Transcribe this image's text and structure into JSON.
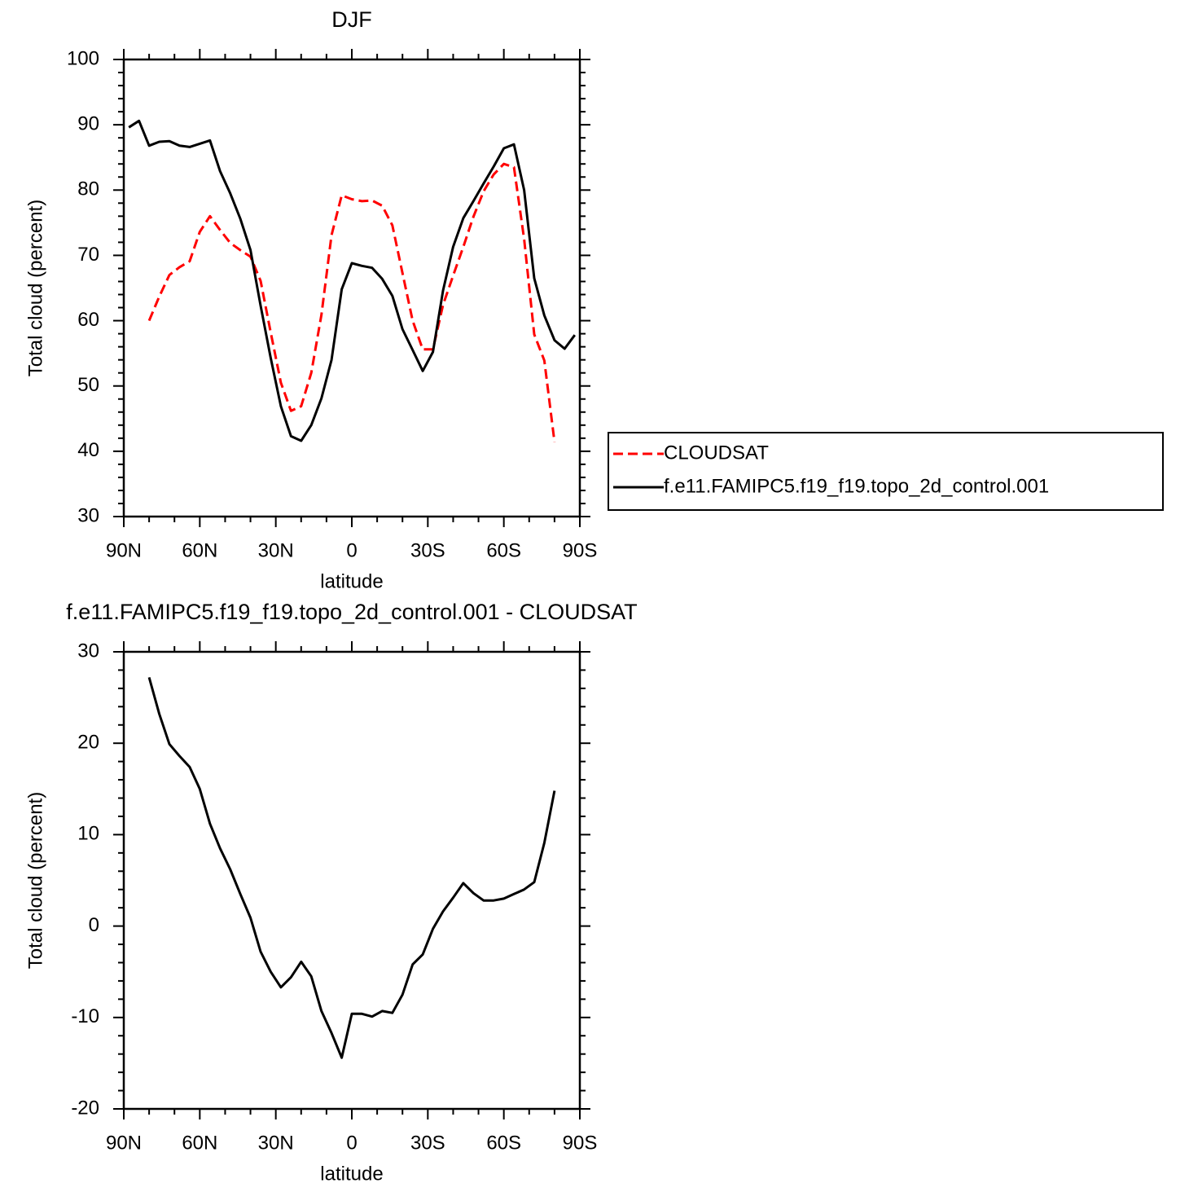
{
  "chart_data": [
    {
      "type": "line",
      "title": "DJF",
      "xlabel": "latitude",
      "ylabel": "Total cloud (percent)",
      "x": [
        88,
        84,
        80,
        76,
        72,
        68,
        64,
        60,
        56,
        52,
        48,
        44,
        40,
        36,
        32,
        28,
        24,
        20,
        16,
        12,
        8,
        4,
        0,
        -4,
        -8,
        -12,
        -16,
        -20,
        -24,
        -28,
        -32,
        -36,
        -40,
        -44,
        -48,
        -52,
        -56,
        -60,
        -64,
        -68,
        -72,
        -76,
        -80,
        -84,
        -88
      ],
      "series": [
        {
          "name": "CLOUDSAT",
          "color": "#ff0000",
          "dashed": true,
          "values": [
            null,
            null,
            60.0,
            63.7,
            67.0,
            68.2,
            69.1,
            73.6,
            76.0,
            73.9,
            71.9,
            70.8,
            69.8,
            66.1,
            58.2,
            50.5,
            46.2,
            46.9,
            52.0,
            60.9,
            73.1,
            79.2,
            78.6,
            78.3,
            78.4,
            77.6,
            74.6,
            67.3,
            60.0,
            55.6,
            55.6,
            62.4,
            66.9,
            71.3,
            75.9,
            79.8,
            82.4,
            84.0,
            83.5,
            72.5,
            57.9,
            53.9,
            41.4,
            null,
            null
          ]
        },
        {
          "name": "f.e11.FAMIPC5.f19_f19.topo_2d_control.001",
          "color": "#000000",
          "dashed": false,
          "values": [
            89.6,
            90.6,
            86.8,
            87.4,
            87.5,
            86.8,
            86.6,
            87.1,
            87.6,
            82.9,
            79.5,
            75.6,
            70.8,
            62.3,
            54.3,
            46.9,
            42.3,
            41.6,
            44.0,
            48.1,
            54.0,
            64.8,
            68.8,
            68.4,
            68.1,
            66.4,
            63.8,
            58.7,
            55.5,
            52.3,
            55.2,
            64.6,
            71.3,
            75.7,
            78.3,
            81.0,
            83.6,
            86.4,
            87.0,
            80.0,
            66.5,
            60.8,
            57.0,
            55.7,
            57.8
          ]
        }
      ],
      "xlim": [
        90,
        -90
      ],
      "xticks": [
        {
          "value": 90,
          "label": "90N"
        },
        {
          "value": 60,
          "label": "60N"
        },
        {
          "value": 30,
          "label": "30N"
        },
        0,
        {
          "value": -30,
          "label": "30S"
        },
        {
          "value": -60,
          "label": "60S"
        },
        {
          "value": -90,
          "label": "90S"
        }
      ],
      "ylim": [
        30,
        100
      ],
      "yticks": [
        30,
        40,
        50,
        60,
        70,
        80,
        90,
        100
      ],
      "legend": "right"
    },
    {
      "type": "line",
      "title": "f.e11.FAMIPC5.f19_f19.topo_2d_control.001 - CLOUDSAT",
      "xlabel": "latitude",
      "ylabel": "Total cloud (percent)",
      "x": [
        80,
        76,
        72,
        68,
        64,
        60,
        56,
        52,
        48,
        44,
        40,
        36,
        32,
        28,
        24,
        20,
        16,
        12,
        8,
        4,
        0,
        -4,
        -8,
        -12,
        -16,
        -20,
        -24,
        -28,
        -32,
        -36,
        -40,
        -44,
        -48,
        -52,
        -56,
        -60,
        -64,
        -68,
        -72,
        -76,
        -80
      ],
      "series": [
        {
          "color": "#000000",
          "dashed": false,
          "values": [
            27.2,
            23.2,
            19.9,
            18.6,
            17.4,
            15.0,
            11.2,
            8.5,
            6.2,
            3.5,
            0.9,
            -2.8,
            -5.0,
            -6.7,
            -5.6,
            -3.9,
            -5.5,
            -9.3,
            -11.7,
            -14.4,
            -9.6,
            -9.6,
            -9.9,
            -9.3,
            -9.5,
            -7.5,
            -4.2,
            -3.1,
            -0.3,
            1.6,
            3.1,
            4.7,
            3.6,
            2.8,
            2.8,
            3.0,
            3.5,
            4.0,
            4.8,
            9.1,
            14.8
          ]
        }
      ],
      "xlim": [
        90,
        -90
      ],
      "xticks": [
        {
          "value": 90,
          "label": "90N"
        },
        {
          "value": 60,
          "label": "60N"
        },
        {
          "value": 30,
          "label": "30N"
        },
        0,
        {
          "value": -30,
          "label": "30S"
        },
        {
          "value": -60,
          "label": "60S"
        },
        {
          "value": -90,
          "label": "90S"
        }
      ],
      "ylim": [
        -20,
        30
      ],
      "yticks": [
        -20,
        -10,
        0,
        10,
        20,
        30
      ]
    }
  ]
}
